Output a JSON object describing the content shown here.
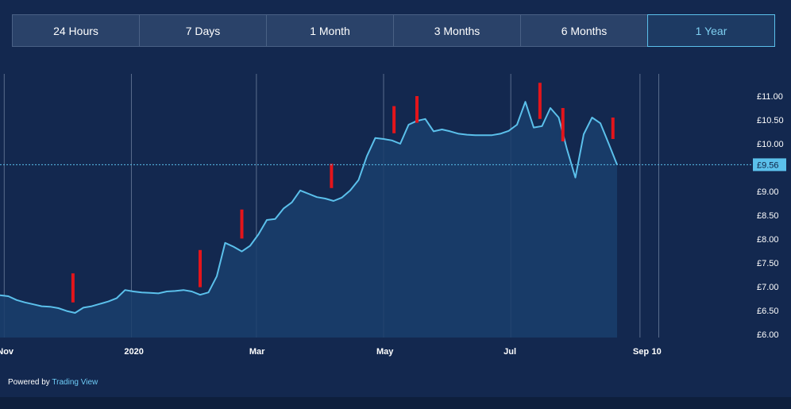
{
  "tabs": [
    {
      "label": "24 Hours",
      "active": false
    },
    {
      "label": "7 Days",
      "active": false
    },
    {
      "label": "1 Month",
      "active": false
    },
    {
      "label": "3 Months",
      "active": false
    },
    {
      "label": "6 Months",
      "active": false
    },
    {
      "label": "1 Year",
      "active": true
    }
  ],
  "footer": {
    "powered_by": "Powered by",
    "brand": "Trading View"
  },
  "colors": {
    "background": "#13284f",
    "line": "#5bc0eb",
    "area": "#1a3e6c",
    "marker": "#e3151b",
    "gridline": "#8a9bb5",
    "text": "#ffffff",
    "current_label_bg": "#5bc0eb"
  },
  "chart_data": {
    "type": "area",
    "currency": "£",
    "ylim": [
      6.0,
      11.5
    ],
    "x_start": "2019-10-30",
    "x_end": "2020-10-24",
    "x_ticks": [
      {
        "label": "Nov",
        "date": "2019-11-01"
      },
      {
        "label": "2020",
        "date": "2020-01-01"
      },
      {
        "label": "Mar",
        "date": "2020-03-01"
      },
      {
        "label": "May",
        "date": "2020-05-01"
      },
      {
        "label": "Jul",
        "date": "2020-07-01"
      },
      {
        "label": "Sep",
        "date": "2020-09-01"
      },
      {
        "label": "10",
        "date": "2020-09-10"
      }
    ],
    "y_ticks": [
      {
        "label": "£11.00",
        "value": 11.0
      },
      {
        "label": "£10.50",
        "value": 10.5
      },
      {
        "label": "£10.00",
        "value": 10.0
      },
      {
        "label": "£9.00",
        "value": 9.0
      },
      {
        "label": "£8.50",
        "value": 8.5
      },
      {
        "label": "£8.00",
        "value": 8.0
      },
      {
        "label": "£7.50",
        "value": 7.5
      },
      {
        "label": "£7.00",
        "value": 7.0
      },
      {
        "label": "£6.50",
        "value": 6.5
      },
      {
        "label": "£6.00",
        "value": 6.0
      }
    ],
    "current": {
      "label": "£9.56",
      "value": 9.56
    },
    "series": [
      {
        "values": [
          [
            "2019-10-30",
            6.82
          ],
          [
            "2019-11-03",
            6.8
          ],
          [
            "2019-11-07",
            6.72
          ],
          [
            "2019-11-11",
            6.67
          ],
          [
            "2019-11-15",
            6.63
          ],
          [
            "2019-11-19",
            6.59
          ],
          [
            "2019-11-23",
            6.58
          ],
          [
            "2019-11-27",
            6.55
          ],
          [
            "2019-12-01",
            6.49
          ],
          [
            "2019-12-05",
            6.45
          ],
          [
            "2019-12-09",
            6.56
          ],
          [
            "2019-12-13",
            6.59
          ],
          [
            "2019-12-17",
            6.64
          ],
          [
            "2019-12-21",
            6.69
          ],
          [
            "2019-12-25",
            6.76
          ],
          [
            "2019-12-29",
            6.93
          ],
          [
            "2020-01-02",
            6.9
          ],
          [
            "2020-01-06",
            6.88
          ],
          [
            "2020-01-10",
            6.87
          ],
          [
            "2020-01-14",
            6.86
          ],
          [
            "2020-01-18",
            6.9
          ],
          [
            "2020-01-22",
            6.91
          ],
          [
            "2020-01-26",
            6.93
          ],
          [
            "2020-01-30",
            6.9
          ],
          [
            "2020-02-03",
            6.83
          ],
          [
            "2020-02-07",
            6.88
          ],
          [
            "2020-02-11",
            7.22
          ],
          [
            "2020-02-15",
            7.92
          ],
          [
            "2020-02-19",
            7.84
          ],
          [
            "2020-02-23",
            7.74
          ],
          [
            "2020-02-27",
            7.86
          ],
          [
            "2020-03-02",
            8.1
          ],
          [
            "2020-03-06",
            8.4
          ],
          [
            "2020-03-10",
            8.42
          ],
          [
            "2020-03-14",
            8.64
          ],
          [
            "2020-03-18",
            8.77
          ],
          [
            "2020-03-22",
            9.02
          ],
          [
            "2020-03-26",
            8.95
          ],
          [
            "2020-03-30",
            8.88
          ],
          [
            "2020-04-03",
            8.85
          ],
          [
            "2020-04-07",
            8.8
          ],
          [
            "2020-04-11",
            8.87
          ],
          [
            "2020-04-15",
            9.02
          ],
          [
            "2020-04-19",
            9.24
          ],
          [
            "2020-04-23",
            9.74
          ],
          [
            "2020-04-27",
            10.12
          ],
          [
            "2020-05-01",
            10.1
          ],
          [
            "2020-05-05",
            10.07
          ],
          [
            "2020-05-09",
            10.0
          ],
          [
            "2020-05-13",
            10.4
          ],
          [
            "2020-05-17",
            10.48
          ],
          [
            "2020-05-21",
            10.52
          ],
          [
            "2020-05-25",
            10.26
          ],
          [
            "2020-05-29",
            10.3
          ],
          [
            "2020-06-02",
            10.26
          ],
          [
            "2020-06-06",
            10.21
          ],
          [
            "2020-06-10",
            10.19
          ],
          [
            "2020-06-14",
            10.18
          ],
          [
            "2020-06-18",
            10.18
          ],
          [
            "2020-06-22",
            10.18
          ],
          [
            "2020-06-26",
            10.21
          ],
          [
            "2020-06-30",
            10.27
          ],
          [
            "2020-07-04",
            10.4
          ],
          [
            "2020-07-08",
            10.88
          ],
          [
            "2020-07-12",
            10.34
          ],
          [
            "2020-07-16",
            10.37
          ],
          [
            "2020-07-20",
            10.75
          ],
          [
            "2020-07-24",
            10.55
          ],
          [
            "2020-07-28",
            9.88
          ],
          [
            "2020-08-01",
            9.29
          ],
          [
            "2020-08-05",
            10.2
          ],
          [
            "2020-08-09",
            10.55
          ],
          [
            "2020-08-13",
            10.43
          ],
          [
            "2020-08-17",
            10.0
          ],
          [
            "2020-08-21",
            9.56
          ]
        ]
      }
    ],
    "markers": [
      {
        "date": "2019-12-04",
        "low": 6.67,
        "high": 7.28
      },
      {
        "date": "2020-02-03",
        "low": 6.99,
        "high": 7.77
      },
      {
        "date": "2020-02-23",
        "low": 8.01,
        "high": 8.62
      },
      {
        "date": "2020-04-06",
        "low": 9.07,
        "high": 9.58
      },
      {
        "date": "2020-05-06",
        "low": 10.22,
        "high": 10.79
      },
      {
        "date": "2020-05-17",
        "low": 10.44,
        "high": 11.0
      },
      {
        "date": "2020-07-15",
        "low": 10.52,
        "high": 11.28
      },
      {
        "date": "2020-07-26",
        "low": 10.05,
        "high": 10.75
      },
      {
        "date": "2020-08-19",
        "low": 10.1,
        "high": 10.55
      }
    ],
    "vertical_lines": [
      "2019-11-01",
      "2020-01-01",
      "2020-03-01",
      "2020-05-01",
      "2020-07-01",
      "2020-09-01",
      "2020-09-10"
    ]
  }
}
